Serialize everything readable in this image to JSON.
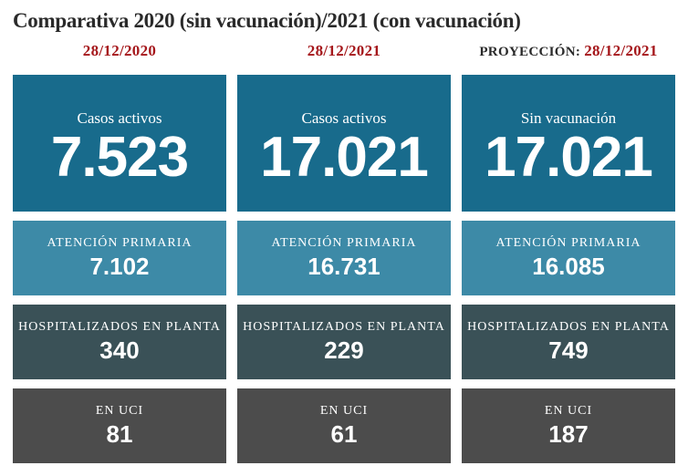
{
  "title": "Comparativa 2020 (sin vacunación)/2021 (con vacunación)",
  "colors": {
    "header_red": "#a5171b",
    "header_dark": "#2a2a2a",
    "row1": "#186b8c",
    "row2": "#3d8aa7",
    "row3": "#3a5157",
    "row4": "#4c4c4c",
    "text": "#ffffff"
  },
  "columns": [
    {
      "header": "28/12/2020",
      "header_class": "red",
      "cards": [
        {
          "label": "Casos activos",
          "value": "7.523",
          "big": true,
          "bg": "#186b8c"
        },
        {
          "label": "ATENCIÓN PRIMARIA",
          "value": "7.102",
          "big": false,
          "bg": "#3d8aa7"
        },
        {
          "label": "HOSPITALIZADOS EN PLANTA",
          "value": "340",
          "big": false,
          "bg": "#3a5157"
        },
        {
          "label": "EN UCI",
          "value": "81",
          "big": false,
          "bg": "#4c4c4c"
        }
      ]
    },
    {
      "header": "28/12/2021",
      "header_class": "red",
      "cards": [
        {
          "label": "Casos activos",
          "value": "17.021",
          "big": true,
          "bg": "#186b8c"
        },
        {
          "label": "ATENCIÓN PRIMARIA",
          "value": "16.731",
          "big": false,
          "bg": "#3d8aa7"
        },
        {
          "label": "HOSPITALIZADOS EN PLANTA",
          "value": "229",
          "big": false,
          "bg": "#3a5157"
        },
        {
          "label": "EN UCI",
          "value": "61",
          "big": false,
          "bg": "#4c4c4c"
        }
      ]
    },
    {
      "header_proj_label": "PROYECCIÓN: ",
      "header_proj_date": "28/12/2021",
      "header_class": "proj",
      "cards": [
        {
          "label": "Sin vacunación",
          "value": "17.021",
          "big": true,
          "bg": "#186b8c"
        },
        {
          "label": "ATENCIÓN PRIMARIA",
          "value": "16.085",
          "big": false,
          "bg": "#3d8aa7"
        },
        {
          "label": "HOSPITALIZADOS EN PLANTA",
          "value": "749",
          "big": false,
          "bg": "#3a5157"
        },
        {
          "label": "EN UCI",
          "value": "187",
          "big": false,
          "bg": "#4c4c4c"
        }
      ]
    }
  ]
}
